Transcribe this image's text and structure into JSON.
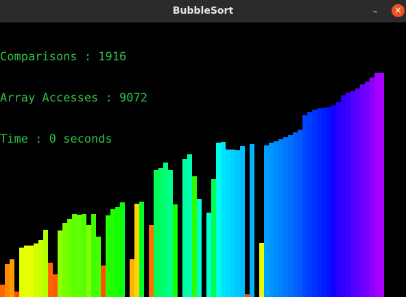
{
  "window": {
    "title": "BubbleSort",
    "minimize_glyph": "–",
    "close_glyph": "×",
    "close_color": "#e95420"
  },
  "stats": {
    "comparisons_label": "Comparisons : 1916",
    "accesses_label": "Array Accesses : 9072",
    "time_label": "Time : 0 seconds",
    "text_color": "#2fbf46"
  },
  "visualization": {
    "background": "#000000",
    "bar_count": 80,
    "max_value": 322,
    "values": [
      18,
      47,
      54,
      8,
      71,
      74,
      74,
      77,
      81,
      96,
      49,
      32,
      95,
      106,
      112,
      119,
      118,
      119,
      103,
      119,
      86,
      45,
      117,
      126,
      129,
      135,
      0,
      54,
      134,
      136,
      0,
      103,
      182,
      185,
      192,
      182,
      133,
      0,
      197,
      204,
      173,
      140,
      0,
      121,
      169,
      221,
      222,
      211,
      211,
      210,
      216,
      4,
      219,
      0,
      78,
      217,
      221,
      223,
      226,
      229,
      232,
      236,
      240,
      260,
      265,
      268,
      270,
      271,
      272,
      275,
      279,
      289,
      293,
      295,
      298,
      304,
      308,
      314,
      321,
      321
    ],
    "colors": [
      "#ff6a00",
      "#ff8a00",
      "#ff9a00",
      "#ff4c00",
      "#e6ff00",
      "#e8ff00",
      "#eaff00",
      "#d4ff00",
      "#c8ff00",
      "#b4ff00",
      "#ff6400",
      "#ff5a00",
      "#8cff00",
      "#78ff00",
      "#6eff00",
      "#5aff00",
      "#64ff00",
      "#50ff00",
      "#82ff00",
      "#3cff00",
      "#46ff00",
      "#ff5000",
      "#28ff00",
      "#1eff00",
      "#14ff00",
      "#0aff14",
      "#000000",
      "#ffb400",
      "#ffd200",
      "#00ff28",
      "#000000",
      "#ff6e00",
      "#00ff50",
      "#00ff64",
      "#00ff78",
      "#00ff8c",
      "#14ff00",
      "#000000",
      "#00ffa0",
      "#00ffb4",
      "#28ff00",
      "#00ffc8",
      "#000000",
      "#00ffd2",
      "#00ff50",
      "#00ffe6",
      "#00e6ff",
      "#00dcff",
      "#00d2ff",
      "#00c8ff",
      "#00beff",
      "#ff5000",
      "#00b4ff",
      "#000000",
      "#e6ff00",
      "#00a0ff",
      "#0096ff",
      "#008cff",
      "#0082ff",
      "#0078ff",
      "#006eff",
      "#0064ff",
      "#005aff",
      "#0046ff",
      "#003cff",
      "#0032ff",
      "#0028ff",
      "#001eff",
      "#0014ff",
      "#1400ff",
      "#2800ff",
      "#3200ff",
      "#3c00ff",
      "#5000ff",
      "#5a00ff",
      "#6e00ff",
      "#7800ff",
      "#8c00ff",
      "#a000ff",
      "#aa00ff"
    ]
  }
}
